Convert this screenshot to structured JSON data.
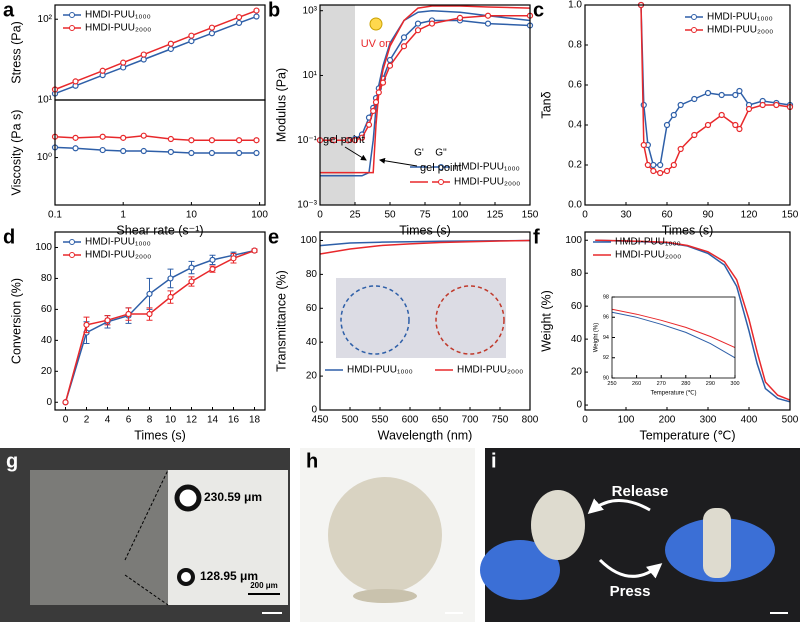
{
  "chart_data": [
    {
      "type": "line",
      "label": "a",
      "ylabel": "Stress (Pa)",
      "xlog": true,
      "ylog": true,
      "markers": true,
      "legend": "upper left",
      "x": [
        0.1,
        0.2,
        0.5,
        1,
        2,
        5,
        10,
        20,
        50,
        90
      ],
      "xlim": [
        0.1,
        120
      ],
      "ylim": [
        10,
        150
      ],
      "yticks": [
        {
          "value": 10,
          "label": "10¹"
        },
        {
          "value": 100,
          "label": "10²"
        }
      ],
      "series": [
        {
          "name": "HMDI-PUU₁₀₀₀",
          "color": "#2e5fa8",
          "values": [
            12,
            15,
            20.3,
            25.3,
            31.7,
            42.8,
            53.6,
            67,
            90,
            108
          ]
        },
        {
          "name": "HMDI-PUU₂₀₀₀",
          "color": "#e8282b",
          "values": [
            13.5,
            17,
            23,
            29,
            36.5,
            49.7,
            62.5,
            78.6,
            106,
            128
          ]
        }
      ]
    },
    {
      "type": "line",
      "ylabel": "Viscosity (Pa s)",
      "xlabel": "Shear rate (s⁻¹)",
      "xlog": true,
      "ylog": true,
      "markers": true,
      "x": [
        0.1,
        0.2,
        0.5,
        1,
        2,
        5,
        10,
        20,
        50,
        90
      ],
      "xlim": [
        0.1,
        120
      ],
      "ylim": [
        0.15,
        10
      ],
      "xticks": [
        0.1,
        1,
        10,
        100
      ],
      "yticks": [
        {
          "value": 1,
          "label": "10⁰"
        }
      ],
      "series": [
        {
          "color": "#2e5fa8",
          "values": [
            1.5,
            1.45,
            1.35,
            1.3,
            1.3,
            1.25,
            1.2,
            1.2,
            1.2,
            1.2
          ]
        },
        {
          "color": "#e8282b",
          "values": [
            2.3,
            2.2,
            2.3,
            2.2,
            2.4,
            2.1,
            2,
            2,
            2,
            2
          ]
        }
      ]
    },
    {
      "type": "line",
      "label": "b",
      "ylabel": "Modulus (Pa)",
      "xlabel": "Times (s)",
      "ylog": true,
      "legend": "lower right",
      "legend_headers": [
        "G'",
        "G''"
      ],
      "shaded_xrange": [
        0,
        25
      ],
      "annotations": [
        "gel point",
        "gel point",
        "UV on"
      ],
      "x": [
        0,
        10,
        20,
        25,
        30,
        35,
        38,
        40,
        42,
        45,
        50,
        60,
        70,
        80,
        100,
        120,
        150
      ],
      "xlim": [
        0,
        150
      ],
      "ylim": [
        0.001,
        1500
      ],
      "xticks": [
        0,
        25,
        50,
        75,
        100,
        125,
        150
      ],
      "yticks": [
        {
          "value": 0.001,
          "label": "10⁻³"
        },
        {
          "value": 0.1,
          "label": "10⁻¹"
        },
        {
          "value": 10,
          "label": "10¹"
        },
        {
          "value": 1000,
          "label": "10³"
        }
      ],
      "series": [
        {
          "name": "HMDI-PUU₁₀₀₀",
          "color": "#2e5fa8",
          "values": [
            0.008,
            0.008,
            0.008,
            0.008,
            0.008,
            0.01,
            0.1,
            1,
            5,
            20,
            100,
            500,
            900,
            1000,
            900,
            700,
            500
          ],
          "values_loss": [
            0.1,
            0.1,
            0.1,
            0.11,
            0.15,
            0.5,
            1,
            2,
            4,
            8,
            30,
            150,
            400,
            500,
            500,
            400,
            350
          ]
        },
        {
          "name": "HMDI-PUU₂₀₀₀",
          "color": "#e8282b",
          "values": [
            0.01,
            0.01,
            0.01,
            0.01,
            0.01,
            0.01,
            0.01,
            0.3,
            3,
            15,
            80,
            500,
            1200,
            1400,
            1400,
            1300,
            1200
          ],
          "values_loss": [
            0.1,
            0.1,
            0.1,
            0.1,
            0.12,
            0.3,
            0.8,
            1.5,
            3,
            6,
            20,
            80,
            250,
            400,
            600,
            700,
            700
          ]
        }
      ]
    },
    {
      "type": "line",
      "label": "c",
      "ylabel": "Tanδ",
      "xlabel": "Times (s)",
      "markers": true,
      "legend": "upper right",
      "x": [
        41,
        43,
        46,
        50,
        55,
        60,
        65,
        70,
        80,
        90,
        100,
        110,
        113,
        120,
        130,
        140,
        150
      ],
      "xlim": [
        0,
        150
      ],
      "ylim": [
        0,
        1
      ],
      "xticks": [
        0,
        30,
        60,
        90,
        120,
        150
      ],
      "yticks": [
        {
          "value": 0,
          "label": "0.0"
        },
        0.2,
        0.4,
        0.6,
        0.8,
        {
          "value": 1,
          "label": "1.0"
        }
      ],
      "series": [
        {
          "name": "HMDI-PUU₁₀₀₀",
          "color": "#2e5fa8",
          "values": [
            1,
            0.5,
            0.3,
            0.2,
            0.2,
            0.4,
            0.45,
            0.5,
            0.53,
            0.56,
            0.55,
            0.55,
            0.57,
            0.5,
            0.52,
            0.51,
            0.5
          ]
        },
        {
          "name": "HMDI-PUU₂₀₀₀",
          "color": "#e8282b",
          "values": [
            1,
            0.3,
            0.2,
            0.17,
            0.16,
            0.17,
            0.2,
            0.28,
            0.35,
            0.4,
            0.45,
            0.4,
            0.38,
            0.48,
            0.5,
            0.5,
            0.49
          ]
        }
      ]
    },
    {
      "type": "line",
      "label": "d",
      "ylabel": "Conversion (%)",
      "xlabel": "Times (s)",
      "markers": true,
      "legend": "upper left",
      "x": [
        0,
        2,
        4,
        6,
        8,
        10,
        12,
        14,
        16,
        18
      ],
      "xlim": [
        -1,
        19
      ],
      "ylim": [
        -5,
        110
      ],
      "xticks": [
        0,
        2,
        4,
        6,
        8,
        10,
        12,
        14,
        16,
        18
      ],
      "yticks": [
        0,
        20,
        40,
        60,
        80,
        100
      ],
      "series": [
        {
          "name": "HMDI-PUU₁₀₀₀",
          "color": "#2e5fa8",
          "values": [
            0,
            45,
            52,
            56,
            70,
            80,
            87,
            92,
            95,
            98
          ],
          "errors": [
            0,
            7,
            4,
            5,
            10,
            6,
            4,
            3,
            2,
            1
          ]
        },
        {
          "name": "HMDI-PUU₂₀₀₀",
          "color": "#e8282b",
          "values": [
            0,
            50,
            53,
            57,
            57,
            68,
            78,
            86,
            93,
            98
          ],
          "errors": [
            0,
            5,
            3,
            4,
            4,
            4,
            3,
            2,
            3,
            1
          ]
        }
      ]
    },
    {
      "type": "line",
      "label": "e",
      "ylabel": "Transmittance (%)",
      "xlabel": "Wavelength (nm)",
      "legend": "lower center",
      "x": [
        450,
        500,
        550,
        600,
        650,
        700,
        750,
        800
      ],
      "xlim": [
        450,
        800
      ],
      "ylim": [
        0,
        105
      ],
      "xticks": [
        450,
        500,
        550,
        600,
        650,
        700,
        750,
        800
      ],
      "yticks": [
        0,
        20,
        40,
        60,
        80,
        100
      ],
      "series": [
        {
          "name": "HMDI-PUU₁₀₀₀",
          "color": "#2e5fa8",
          "values": [
            97,
            98.5,
            99,
            99.3,
            99.5,
            99.7,
            99.8,
            100
          ]
        },
        {
          "name": "HMDI-PUU₂₀₀₀",
          "color": "#e8282b",
          "values": [
            92,
            95,
            97,
            98,
            98.8,
            99.3,
            99.7,
            100
          ]
        }
      ]
    },
    {
      "type": "line",
      "label": "f",
      "ylabel": "Weight (%)",
      "xlabel": "Temperature (℃)",
      "legend": "upper left",
      "x": [
        25,
        100,
        200,
        250,
        300,
        340,
        370,
        400,
        420,
        440,
        470,
        500
      ],
      "xlim": [
        0,
        500
      ],
      "ylim": [
        -3,
        105
      ],
      "xticks": [
        0,
        100,
        200,
        300,
        400,
        500
      ],
      "yticks": [
        0,
        20,
        40,
        60,
        80,
        100
      ],
      "series": [
        {
          "name": "HMDI-PUU₁₀₀₀",
          "color": "#2e5fa8",
          "values": [
            100,
            99.5,
            98.5,
            96.5,
            92,
            85,
            72,
            45,
            25,
            10,
            4,
            2
          ]
        },
        {
          "name": "HMDI-PUU₂₀₀₀",
          "color": "#e8282b",
          "values": [
            100,
            99.6,
            98.8,
            96.8,
            93,
            87,
            76,
            52,
            32,
            14,
            6,
            3
          ]
        }
      ]
    },
    {
      "type": "line",
      "ylabel": "Weight (%)",
      "xlabel": "Temperature (℃)",
      "x": [
        250,
        260,
        270,
        280,
        290,
        300
      ],
      "xlim": [
        250,
        300
      ],
      "ylim": [
        90,
        98
      ],
      "xticks": [
        250,
        260,
        270,
        280,
        290,
        300
      ],
      "yticks": [
        90,
        92,
        94,
        96,
        98
      ],
      "series": [
        {
          "color": "#2e5fa8",
          "values": [
            96.5,
            96,
            95.3,
            94.5,
            93.4,
            92
          ]
        },
        {
          "color": "#e8282b",
          "values": [
            96.8,
            96.3,
            95.7,
            95,
            94.1,
            93
          ]
        }
      ]
    }
  ],
  "photos": {
    "g": {
      "label": "g",
      "measurements": [
        "230.59 μm",
        "128.95 μm"
      ],
      "scale_bar": "200 μm"
    },
    "h": {
      "label": "h"
    },
    "i": {
      "label": "i",
      "arrows": [
        "Release",
        "Press"
      ]
    }
  }
}
